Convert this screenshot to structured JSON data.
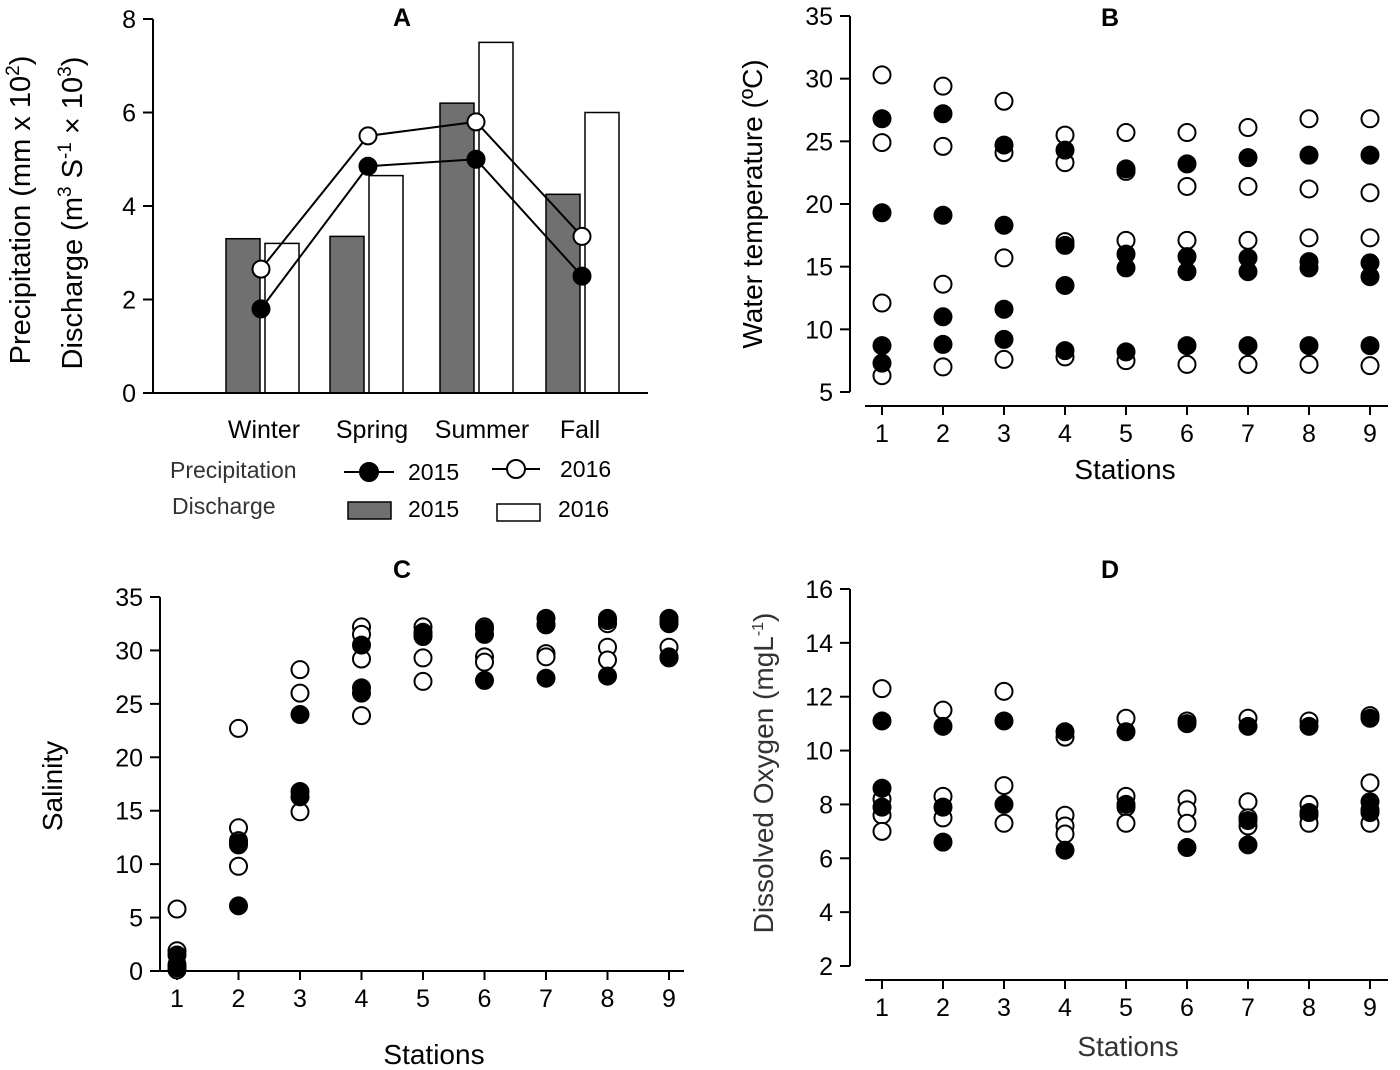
{
  "colors": {
    "filled": "#000000",
    "open": "#ffffff",
    "bar2015": "#707070",
    "bar2016": "#ffffff",
    "stroke": "#000000"
  },
  "panels": {
    "A": {
      "letter": "A",
      "ylabel_line1": "Precipitation (mm x 10",
      "ylabel_line1_sup": "2",
      "ylabel_line1_end": ")",
      "ylabel_line2_a": "Discharge  (m",
      "ylabel_line2_sup1": "3",
      "ylabel_line2_b": " S",
      "ylabel_line2_sup2": "-1",
      "ylabel_line2_c": " × 10",
      "ylabel_line2_sup3": "3",
      "ylabel_line2_end": ")",
      "legend": {
        "precip_label": "Precipitation",
        "discharge_label": "Discharge",
        "y2015": "2015",
        "y2016": "2016"
      }
    },
    "B": {
      "letter": "B",
      "ylabel": "Water temperature (ºC)",
      "xlabel": "Stations"
    },
    "C": {
      "letter": "C",
      "ylabel": "Salinity",
      "xlabel": "Stations"
    },
    "D": {
      "letter": "D",
      "ylabel_main": "Dissolved Oxygen (mgL",
      "ylabel_sup": "-1",
      "ylabel_end": ")",
      "xlabel": "Stations"
    }
  },
  "chart_data": [
    {
      "panel": "A",
      "type": "bar",
      "categories": [
        "Winter",
        "Spring",
        "Summer",
        "Fall"
      ],
      "ylim": [
        0,
        8
      ],
      "yticks": [
        0,
        2,
        4,
        6,
        8
      ],
      "bar_series": [
        {
          "name": "Discharge 2015",
          "values": [
            3.3,
            3.35,
            6.2,
            4.25
          ]
        },
        {
          "name": "Discharge 2016",
          "values": [
            3.2,
            4.65,
            7.5,
            6.0
          ]
        }
      ],
      "line_series": [
        {
          "name": "Precipitation 2015",
          "values": [
            1.8,
            4.85,
            5.0,
            2.5
          ]
        },
        {
          "name": "Precipitation 2016",
          "values": [
            2.65,
            5.5,
            5.8,
            3.35
          ]
        }
      ]
    },
    {
      "panel": "B",
      "type": "scatter",
      "x": [
        1,
        2,
        3,
        4,
        5,
        6,
        7,
        8,
        9
      ],
      "xlabel": "Stations",
      "ylabel": "Water temperature (ºC)",
      "ylim": [
        5,
        35
      ],
      "yticks": [
        5,
        10,
        15,
        20,
        25,
        30,
        35
      ],
      "series": [
        {
          "name": "2015",
          "filled": true,
          "points": [
            [
              1,
              26.8
            ],
            [
              1,
              19.3
            ],
            [
              1,
              8.7
            ],
            [
              1,
              7.3
            ],
            [
              2,
              27.2
            ],
            [
              2,
              19.1
            ],
            [
              2,
              11.0
            ],
            [
              2,
              8.8
            ],
            [
              3,
              24.7
            ],
            [
              3,
              18.3
            ],
            [
              3,
              11.6
            ],
            [
              3,
              9.2
            ],
            [
              4,
              24.3
            ],
            [
              4,
              16.7
            ],
            [
              4,
              13.5
            ],
            [
              4,
              8.3
            ],
            [
              5,
              22.8
            ],
            [
              5,
              16.0
            ],
            [
              5,
              14.9
            ],
            [
              5,
              8.2
            ],
            [
              6,
              23.2
            ],
            [
              6,
              15.8
            ],
            [
              6,
              14.6
            ],
            [
              6,
              8.7
            ],
            [
              7,
              23.7
            ],
            [
              7,
              15.7
            ],
            [
              7,
              14.6
            ],
            [
              7,
              8.7
            ],
            [
              8,
              23.9
            ],
            [
              8,
              15.4
            ],
            [
              8,
              14.9
            ],
            [
              8,
              8.7
            ],
            [
              9,
              23.9
            ],
            [
              9,
              15.3
            ],
            [
              9,
              14.2
            ],
            [
              9,
              8.7
            ]
          ]
        },
        {
          "name": "2016",
          "filled": false,
          "points": [
            [
              1,
              30.3
            ],
            [
              1,
              24.9
            ],
            [
              1,
              12.1
            ],
            [
              1,
              6.3
            ],
            [
              2,
              29.4
            ],
            [
              2,
              24.6
            ],
            [
              2,
              13.6
            ],
            [
              2,
              7.0
            ],
            [
              3,
              28.2
            ],
            [
              3,
              24.1
            ],
            [
              3,
              15.7
            ],
            [
              3,
              7.6
            ],
            [
              4,
              25.5
            ],
            [
              4,
              23.3
            ],
            [
              4,
              17.0
            ],
            [
              4,
              7.8
            ],
            [
              5,
              25.7
            ],
            [
              5,
              22.6
            ],
            [
              5,
              17.1
            ],
            [
              5,
              7.5
            ],
            [
              6,
              25.7
            ],
            [
              6,
              21.4
            ],
            [
              6,
              17.1
            ],
            [
              6,
              7.2
            ],
            [
              7,
              26.1
            ],
            [
              7,
              21.4
            ],
            [
              7,
              17.1
            ],
            [
              7,
              7.2
            ],
            [
              8,
              26.8
            ],
            [
              8,
              21.2
            ],
            [
              8,
              17.3
            ],
            [
              8,
              7.2
            ],
            [
              9,
              26.8
            ],
            [
              9,
              20.9
            ],
            [
              9,
              17.3
            ],
            [
              9,
              7.1
            ]
          ]
        }
      ]
    },
    {
      "panel": "C",
      "type": "scatter",
      "x": [
        1,
        2,
        3,
        4,
        5,
        6,
        7,
        8,
        9
      ],
      "xlabel": "Stations",
      "ylabel": "Salinity",
      "ylim": [
        0,
        35
      ],
      "yticks": [
        0,
        5,
        10,
        15,
        20,
        25,
        30,
        35
      ],
      "series": [
        {
          "name": "2015",
          "filled": true,
          "points": [
            [
              1,
              1.5
            ],
            [
              1,
              0.6
            ],
            [
              1,
              0.3
            ],
            [
              2,
              6.1
            ],
            [
              2,
              12.0
            ],
            [
              2,
              11.8
            ],
            [
              3,
              24.0
            ],
            [
              3,
              16.8
            ],
            [
              3,
              16.3
            ],
            [
              4,
              30.5
            ],
            [
              4,
              26.5
            ],
            [
              4,
              26.0
            ],
            [
              5,
              31.7
            ],
            [
              5,
              31.3
            ],
            [
              5,
              31.5
            ],
            [
              6,
              27.2
            ],
            [
              6,
              31.5
            ],
            [
              6,
              32.0
            ],
            [
              7,
              27.4
            ],
            [
              7,
              32.4
            ],
            [
              7,
              33.0
            ],
            [
              8,
              27.6
            ],
            [
              8,
              33.0
            ],
            [
              8,
              32.8
            ],
            [
              9,
              29.3
            ],
            [
              9,
              32.5
            ],
            [
              9,
              33.0
            ]
          ]
        },
        {
          "name": "2016",
          "filled": false,
          "points": [
            [
              1,
              5.8
            ],
            [
              1,
              1.9
            ],
            [
              1,
              0.1
            ],
            [
              2,
              22.7
            ],
            [
              2,
              13.4
            ],
            [
              2,
              12.2
            ],
            [
              2,
              9.8
            ],
            [
              3,
              28.2
            ],
            [
              3,
              26.0
            ],
            [
              3,
              14.9
            ],
            [
              4,
              32.2
            ],
            [
              4,
              31.5
            ],
            [
              4,
              29.2
            ],
            [
              4,
              23.9
            ],
            [
              5,
              32.2
            ],
            [
              5,
              29.3
            ],
            [
              5,
              27.1
            ],
            [
              6,
              32.2
            ],
            [
              6,
              29.4
            ],
            [
              6,
              28.9
            ],
            [
              7,
              32.4
            ],
            [
              7,
              29.7
            ],
            [
              7,
              29.4
            ],
            [
              8,
              32.5
            ],
            [
              8,
              30.3
            ],
            [
              8,
              29.1
            ],
            [
              9,
              32.7
            ],
            [
              9,
              30.3
            ],
            [
              9,
              29.4
            ]
          ]
        }
      ]
    },
    {
      "panel": "D",
      "type": "scatter",
      "x": [
        1,
        2,
        3,
        4,
        5,
        6,
        7,
        8,
        9
      ],
      "xlabel": "Stations",
      "ylabel": "Dissolved Oxygen (mgL-1)",
      "ylim": [
        2,
        16
      ],
      "yticks": [
        2,
        4,
        6,
        8,
        10,
        12,
        14,
        16
      ],
      "series": [
        {
          "name": "2015",
          "filled": true,
          "points": [
            [
              1,
              11.1
            ],
            [
              1,
              8.6
            ],
            [
              1,
              7.9
            ],
            [
              2,
              10.9
            ],
            [
              2,
              7.9
            ],
            [
              2,
              6.6
            ],
            [
              3,
              11.1
            ],
            [
              3,
              8.0
            ],
            [
              4,
              10.7
            ],
            [
              4,
              6.3
            ],
            [
              5,
              10.7
            ],
            [
              5,
              8.0
            ],
            [
              6,
              11.0
            ],
            [
              6,
              6.4
            ],
            [
              7,
              10.9
            ],
            [
              7,
              7.4
            ],
            [
              7,
              6.5
            ],
            [
              8,
              10.9
            ],
            [
              8,
              7.7
            ],
            [
              9,
              11.2
            ],
            [
              9,
              8.1
            ],
            [
              9,
              7.7
            ]
          ]
        },
        {
          "name": "2016",
          "filled": false,
          "points": [
            [
              1,
              12.3
            ],
            [
              1,
              8.2
            ],
            [
              1,
              7.6
            ],
            [
              1,
              7.0
            ],
            [
              2,
              11.5
            ],
            [
              2,
              8.3
            ],
            [
              2,
              7.5
            ],
            [
              3,
              12.2
            ],
            [
              3,
              8.7
            ],
            [
              3,
              7.3
            ],
            [
              4,
              10.5
            ],
            [
              4,
              7.6
            ],
            [
              4,
              7.2
            ],
            [
              4,
              6.9
            ],
            [
              5,
              11.2
            ],
            [
              5,
              8.3
            ],
            [
              5,
              7.9
            ],
            [
              5,
              7.3
            ],
            [
              6,
              11.1
            ],
            [
              6,
              8.2
            ],
            [
              6,
              7.8
            ],
            [
              6,
              7.3
            ],
            [
              7,
              11.2
            ],
            [
              7,
              8.1
            ],
            [
              7,
              7.5
            ],
            [
              7,
              7.2
            ],
            [
              8,
              11.1
            ],
            [
              8,
              8.0
            ],
            [
              8,
              7.6
            ],
            [
              8,
              7.3
            ],
            [
              9,
              11.3
            ],
            [
              9,
              8.8
            ],
            [
              9,
              7.8
            ],
            [
              9,
              7.3
            ]
          ]
        }
      ]
    }
  ]
}
